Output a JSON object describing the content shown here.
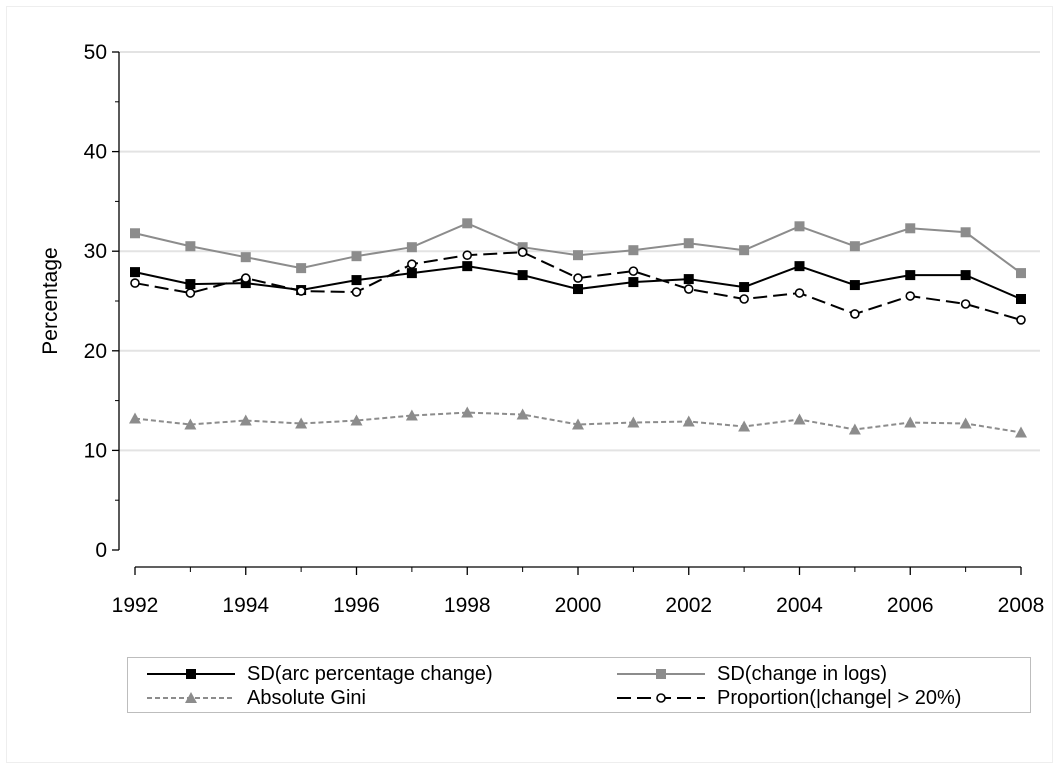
{
  "chart_data": {
    "type": "line",
    "title": "",
    "xlabel": "",
    "ylabel": "Percentage",
    "x": [
      1992,
      1993,
      1994,
      1995,
      1996,
      1997,
      1998,
      1999,
      2000,
      2001,
      2002,
      2003,
      2004,
      2005,
      2006,
      2007,
      2008
    ],
    "xticks": [
      "1992",
      "1994",
      "1996",
      "1998",
      "2000",
      "2002",
      "2004",
      "2006",
      "2008"
    ],
    "yticks": [
      "0",
      "10",
      "20",
      "30",
      "40",
      "50"
    ],
    "xlim": [
      1992,
      2008
    ],
    "ylim": [
      0,
      50
    ],
    "grid": true,
    "legend_position": "bottom",
    "series": [
      {
        "name": "SD(arc percentage change)",
        "color": "#000000",
        "dash": "solid",
        "marker": "square-filled",
        "values": [
          27.9,
          26.7,
          26.8,
          26.1,
          27.1,
          27.8,
          28.5,
          27.6,
          26.2,
          26.9,
          27.2,
          26.4,
          28.5,
          26.6,
          27.6,
          27.6,
          25.2
        ]
      },
      {
        "name": "SD(change in logs)",
        "color": "#8c8c8c",
        "dash": "solid",
        "marker": "square-filled",
        "values": [
          31.8,
          30.5,
          29.4,
          28.3,
          29.5,
          30.4,
          32.8,
          30.4,
          29.6,
          30.1,
          30.8,
          30.1,
          32.5,
          30.5,
          32.3,
          31.9,
          27.8
        ]
      },
      {
        "name": "Absolute Gini",
        "color": "#8c8c8c",
        "dash": "short",
        "marker": "triangle-filled",
        "values": [
          13.2,
          12.6,
          13.0,
          12.7,
          13.0,
          13.5,
          13.8,
          13.6,
          12.6,
          12.8,
          12.9,
          12.4,
          13.1,
          12.1,
          12.8,
          12.7,
          11.8
        ]
      },
      {
        "name": "Proportion(|change| > 20%)",
        "color": "#000000",
        "dash": "long",
        "marker": "circle-open",
        "values": [
          26.8,
          25.8,
          27.3,
          26.0,
          25.9,
          28.7,
          29.6,
          29.9,
          27.3,
          28.0,
          26.2,
          25.2,
          25.8,
          23.7,
          25.5,
          24.7,
          23.1
        ]
      }
    ]
  }
}
